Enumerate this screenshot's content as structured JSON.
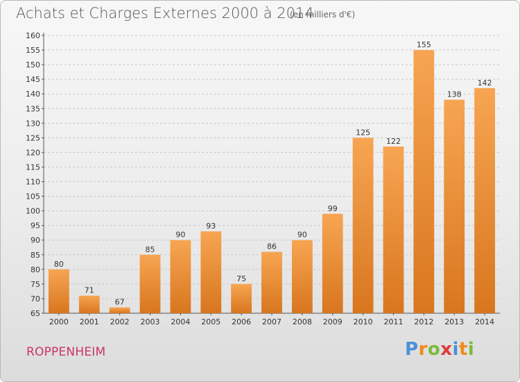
{
  "header": {
    "title": "Achats et Charges Externes 2000 à 2014",
    "subtitle": "(en milliers d'€)"
  },
  "footer": {
    "location": "ROPPENHEIM",
    "logo": {
      "text": "Proxiti",
      "letters": [
        {
          "char": "P",
          "color": "#4a90d9"
        },
        {
          "char": "r",
          "color": "#f08a1c"
        },
        {
          "char": "o",
          "color": "#7cba3c"
        },
        {
          "char": "x",
          "color": "#e03a3a"
        },
        {
          "char": "i",
          "color": "#4a90d9"
        },
        {
          "char": "t",
          "color": "#f08a1c"
        },
        {
          "char": "i",
          "color": "#7cba3c"
        }
      ]
    }
  },
  "colors": {
    "bar_light": "#f7a552",
    "bar_dark": "#d8761e",
    "grid": "#c8c8c8"
  },
  "chart_data": {
    "type": "bar",
    "categories": [
      "2000",
      "2001",
      "2002",
      "2003",
      "2004",
      "2005",
      "2006",
      "2007",
      "2008",
      "2009",
      "2010",
      "2011",
      "2012",
      "2013",
      "2014"
    ],
    "values": [
      80,
      71,
      67,
      85,
      90,
      93,
      75,
      86,
      90,
      99,
      125,
      122,
      155,
      138,
      142
    ],
    "ylim": [
      65,
      160
    ],
    "yticks": [
      65,
      70,
      75,
      80,
      85,
      90,
      95,
      100,
      105,
      110,
      115,
      120,
      125,
      130,
      135,
      140,
      145,
      150,
      155,
      160
    ],
    "grid": true,
    "data_labels": true
  }
}
